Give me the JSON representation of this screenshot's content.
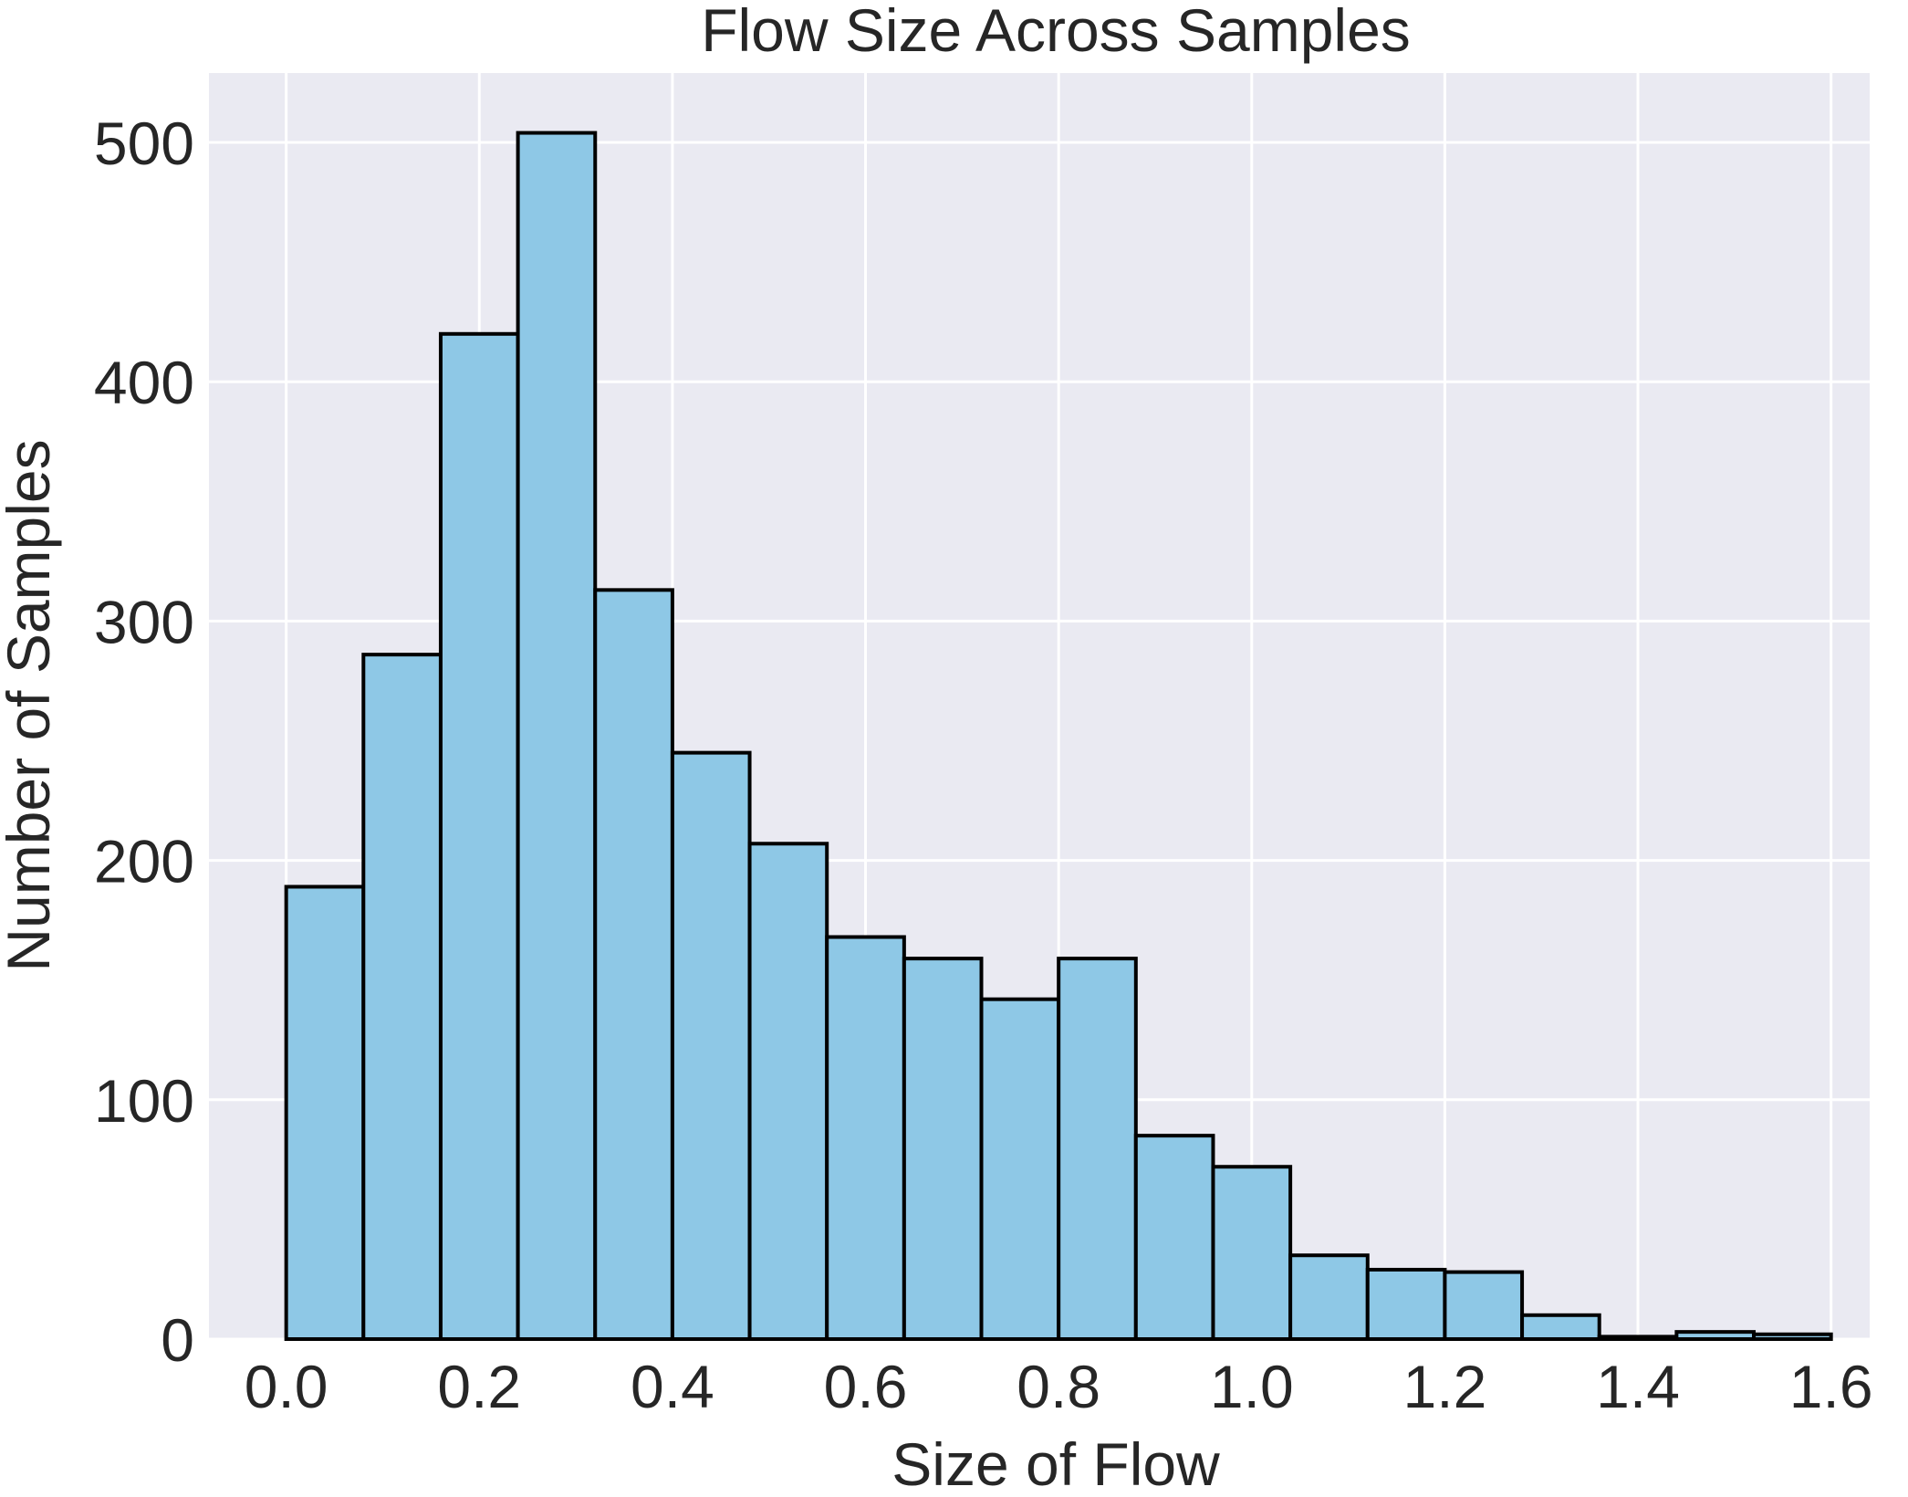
{
  "chart_data": {
    "type": "bar",
    "title": "Flow Size Across Samples",
    "xlabel": "Size of Flow",
    "ylabel": "Number of Samples",
    "xlim": [
      -0.08,
      1.64
    ],
    "ylim": [
      0,
      529
    ],
    "xticks": [
      0.0,
      0.2,
      0.4,
      0.6,
      0.8,
      1.0,
      1.2,
      1.4,
      1.6
    ],
    "xtick_labels": [
      "0.0",
      "0.2",
      "0.4",
      "0.6",
      "0.8",
      "1.0",
      "1.2",
      "1.4",
      "1.6"
    ],
    "yticks": [
      0,
      100,
      200,
      300,
      400,
      500
    ],
    "ytick_labels": [
      "0",
      "100",
      "200",
      "300",
      "400",
      "500"
    ],
    "grid": true,
    "colors": {
      "bar_fill": "#8ec8e6",
      "bar_edge": "#000000",
      "plot_bg": "#eaeaf2",
      "grid": "#ffffff"
    },
    "bins": [
      [
        0.0,
        0.08
      ],
      [
        0.08,
        0.16
      ],
      [
        0.16,
        0.24
      ],
      [
        0.24,
        0.32
      ],
      [
        0.32,
        0.4
      ],
      [
        0.4,
        0.48
      ],
      [
        0.48,
        0.56
      ],
      [
        0.56,
        0.64
      ],
      [
        0.64,
        0.72
      ],
      [
        0.72,
        0.8
      ],
      [
        0.8,
        0.88
      ],
      [
        0.88,
        0.96
      ],
      [
        0.96,
        1.04
      ],
      [
        1.04,
        1.12
      ],
      [
        1.12,
        1.2
      ],
      [
        1.2,
        1.28
      ],
      [
        1.28,
        1.36
      ],
      [
        1.36,
        1.44
      ],
      [
        1.44,
        1.52
      ],
      [
        1.52,
        1.6
      ]
    ],
    "values": [
      189,
      286,
      420,
      504,
      313,
      245,
      207,
      168,
      159,
      142,
      159,
      85,
      72,
      35,
      29,
      28,
      10,
      1,
      3,
      2
    ]
  }
}
